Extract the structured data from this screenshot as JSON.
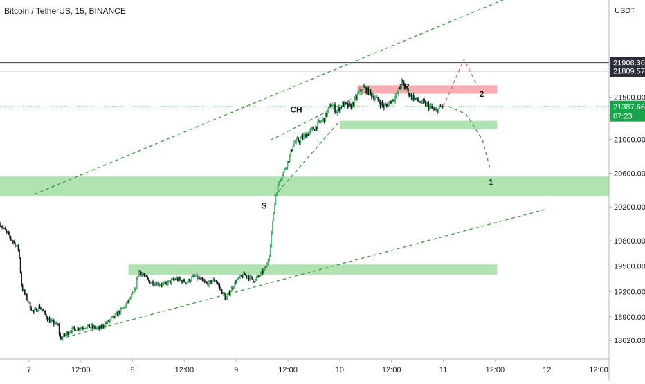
{
  "chart_data": {
    "type": "candlestick",
    "title": "Bitcoin / TetherUS, 15, BINANCE",
    "currency": "USDT",
    "ylim": [
      18400,
      22650
    ],
    "xlim": [
      -0.28,
      5.6
    ],
    "x_ticks": [
      {
        "x": 0,
        "label": "7"
      },
      {
        "x": 0.5,
        "label": "12:00"
      },
      {
        "x": 1,
        "label": "8"
      },
      {
        "x": 1.5,
        "label": "12:00"
      },
      {
        "x": 2,
        "label": "9"
      },
      {
        "x": 2.5,
        "label": "12:00"
      },
      {
        "x": 3,
        "label": "10"
      },
      {
        "x": 3.5,
        "label": "12:00"
      },
      {
        "x": 4,
        "label": "11"
      },
      {
        "x": 4.5,
        "label": "12:00"
      },
      {
        "x": 5,
        "label": "12"
      },
      {
        "x": 5.5,
        "label": "12:00"
      }
    ],
    "y_ticks": [
      {
        "y": 21500,
        "label": "21500.00"
      },
      {
        "y": 21000,
        "label": "21000.00"
      },
      {
        "y": 20600,
        "label": "20600.00"
      },
      {
        "y": 20200,
        "label": "20200.00"
      },
      {
        "y": 19800,
        "label": "19800.00"
      },
      {
        "y": 19500,
        "label": "19500.00"
      },
      {
        "y": 19200,
        "label": "19200.00"
      },
      {
        "y": 18900,
        "label": "18900.00"
      },
      {
        "y": 18620,
        "label": "18620.00"
      }
    ],
    "price_labels": [
      {
        "y": 21908.3,
        "label": "21908.30",
        "style": "dark"
      },
      {
        "y": 21809.57,
        "label": "21809.57",
        "style": "dark"
      },
      {
        "y": 21387.66,
        "label": "21387.66",
        "sub": "07:23",
        "style": "green"
      }
    ],
    "horizontal_lines": [
      {
        "y": 21908.3,
        "color": "#363a45"
      },
      {
        "y": 21809.57,
        "color": "#363a45"
      },
      {
        "y": 21387.66,
        "color": "#22ab3d",
        "dotted": true
      }
    ],
    "zones": [
      {
        "x0": 3.17,
        "x1": 4.52,
        "y0": 21540,
        "y1": 21640,
        "color": "#f5a3a8"
      },
      {
        "x0": 3.0,
        "x1": 4.52,
        "y0": 21120,
        "y1": 21220,
        "color": "#a6e0a9"
      },
      {
        "x0": -0.28,
        "x1": 5.6,
        "y0": 20330,
        "y1": 20560,
        "color": "#a6e0a9"
      },
      {
        "x0": 0.96,
        "x1": 4.52,
        "y0": 19400,
        "y1": 19520,
        "color": "#a6e0a9"
      }
    ],
    "trend_lines": [
      {
        "points": [
          [
            0.05,
            20350
          ],
          [
            4.75,
            22740
          ]
        ],
        "color": "#3b9a3e"
      },
      {
        "points": [
          [
            0.3,
            18640
          ],
          [
            4.98,
            20170
          ]
        ],
        "color": "#3b9a3e"
      },
      {
        "points": [
          [
            2.33,
            20990
          ],
          [
            3.25,
            21560
          ]
        ],
        "color": "#3b9a3e"
      },
      {
        "points": [
          [
            2.37,
            20330
          ],
          [
            2.98,
            21190
          ]
        ],
        "color": "#3b9a3e"
      }
    ],
    "projections": [
      {
        "points": [
          [
            4.0,
            21390
          ],
          [
            4.2,
            21950
          ],
          [
            4.33,
            21630
          ]
        ],
        "color": "#e0608a"
      },
      {
        "points": [
          [
            4.05,
            21390
          ],
          [
            4.22,
            21300
          ],
          [
            4.38,
            20990
          ],
          [
            4.45,
            20660
          ]
        ],
        "color": "#3b9a3e"
      }
    ],
    "annotations": [
      {
        "x": 2.27,
        "y": 20180,
        "text": "S"
      },
      {
        "x": 2.58,
        "y": 21320,
        "text": "CH"
      },
      {
        "x": 3.62,
        "y": 21590,
        "text": "TR"
      },
      {
        "x": 4.37,
        "y": 21505,
        "text": "2"
      },
      {
        "x": 4.46,
        "y": 20460,
        "text": "1"
      }
    ],
    "keypoints": [
      [
        -0.28,
        20000
      ],
      [
        -0.2,
        19870
      ],
      [
        -0.1,
        19700
      ],
      [
        -0.07,
        19250
      ],
      [
        0.04,
        18950
      ],
      [
        0.1,
        19020
      ],
      [
        0.2,
        18850
      ],
      [
        0.28,
        18800
      ],
      [
        0.3,
        18640
      ],
      [
        0.4,
        18740
      ],
      [
        0.55,
        18790
      ],
      [
        0.68,
        18760
      ],
      [
        0.83,
        18910
      ],
      [
        0.93,
        19030
      ],
      [
        1.02,
        19200
      ],
      [
        1.06,
        19450
      ],
      [
        1.16,
        19320
      ],
      [
        1.3,
        19280
      ],
      [
        1.42,
        19350
      ],
      [
        1.52,
        19310
      ],
      [
        1.6,
        19380
      ],
      [
        1.72,
        19290
      ],
      [
        1.8,
        19340
      ],
      [
        1.9,
        19110
      ],
      [
        2.0,
        19330
      ],
      [
        2.08,
        19400
      ],
      [
        2.18,
        19330
      ],
      [
        2.27,
        19450
      ],
      [
        2.3,
        19520
      ],
      [
        2.32,
        19650
      ],
      [
        2.35,
        20000
      ],
      [
        2.38,
        20330
      ],
      [
        2.42,
        20530
      ],
      [
        2.47,
        20650
      ],
      [
        2.52,
        20800
      ],
      [
        2.55,
        20950
      ],
      [
        2.62,
        21000
      ],
      [
        2.7,
        21080
      ],
      [
        2.77,
        21150
      ],
      [
        2.85,
        21250
      ],
      [
        2.92,
        21420
      ],
      [
        2.97,
        21330
      ],
      [
        3.03,
        21420
      ],
      [
        3.1,
        21380
      ],
      [
        3.15,
        21470
      ],
      [
        3.22,
        21620
      ],
      [
        3.28,
        21560
      ],
      [
        3.38,
        21450
      ],
      [
        3.43,
        21380
      ],
      [
        3.55,
        21520
      ],
      [
        3.6,
        21680
      ],
      [
        3.68,
        21520
      ],
      [
        3.78,
        21440
      ],
      [
        3.85,
        21400
      ],
      [
        3.92,
        21330
      ],
      [
        4.0,
        21400
      ]
    ]
  }
}
